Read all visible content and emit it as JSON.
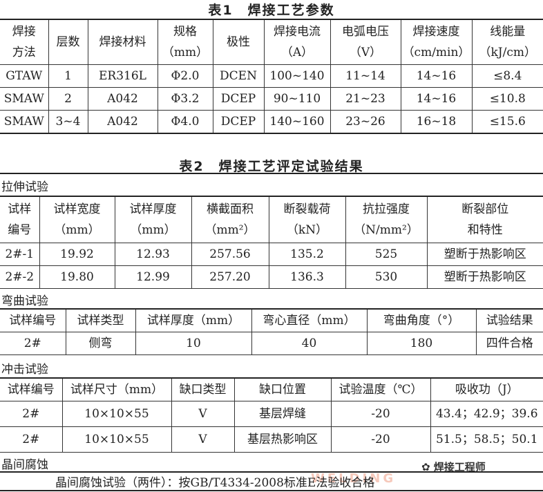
{
  "table1": {
    "title": "表1　焊接工艺参数",
    "headers": [
      "焊接\n方法",
      "层数",
      "焊接材料",
      "规格\n（mm）",
      "极性",
      "焊接电流\n（A）",
      "电弧电压\n（V）",
      "焊接速度\n（cm/min）",
      "线能量\n（kJ/cm）"
    ],
    "rows": [
      [
        "GTAW",
        "1",
        "ER316L",
        "Φ2.0",
        "DCEN",
        "100~140",
        "11~14",
        "14~16",
        "≤8.4"
      ],
      [
        "SMAW",
        "2",
        "A042",
        "Φ3.2",
        "DCEP",
        "90~110",
        "21~23",
        "14~16",
        "≤10.8"
      ],
      [
        "SMAW",
        "3~4",
        "A042",
        "Φ4.0",
        "DCEP",
        "140~160",
        "23~26",
        "16~18",
        "≤15.6"
      ]
    ]
  },
  "table2": {
    "title": "表2　焊接工艺评定试验结果",
    "tensile": {
      "label": "拉伸试验",
      "headers": [
        "试样\n编号",
        "试样宽度\n（mm）",
        "试样厚度\n（mm）",
        "横截面积\n（mm²）",
        "断裂载荷\n（kN）",
        "抗拉强度\n（N/mm²）",
        "断裂部位\n和特性"
      ],
      "rows": [
        [
          "2#-1",
          "19.92",
          "12.93",
          "257.56",
          "135.2",
          "525",
          "塑断于热影响区"
        ],
        [
          "2#-2",
          "19.80",
          "12.99",
          "257.20",
          "136.3",
          "530",
          "塑断于热影响区"
        ]
      ]
    },
    "bend": {
      "label": "弯曲试验",
      "headers": [
        "试样编号",
        "试样类型",
        "试样厚度（mm）",
        "弯心直径（mm）",
        "弯曲角度（°）",
        "试验结果"
      ],
      "rows": [
        [
          "2#",
          "侧弯",
          "10",
          "40",
          "180",
          "四件合格"
        ]
      ]
    },
    "impact": {
      "label": "冲击试验",
      "headers": [
        "试样编号",
        "试样尺寸（mm）",
        "缺口类型",
        "缺口位置",
        "试验温度（℃）",
        "吸收功（J）"
      ],
      "rows": [
        [
          "2#",
          "10×10×55",
          "V",
          "基层焊缝",
          "-20",
          "43.4；42.9；39.6"
        ],
        [
          "2#",
          "10×10×55",
          "V",
          "基层热影响区",
          "-20",
          "51.5；58.5；50.1"
        ]
      ]
    },
    "intergranular": {
      "label": "晶间腐蚀",
      "text": "晶间腐蚀试验（两件）：按GB/T4334-2008标准E法验收合格"
    }
  },
  "watermark": {
    "text": "焊接工程师",
    "icon": "wechat-icon"
  }
}
